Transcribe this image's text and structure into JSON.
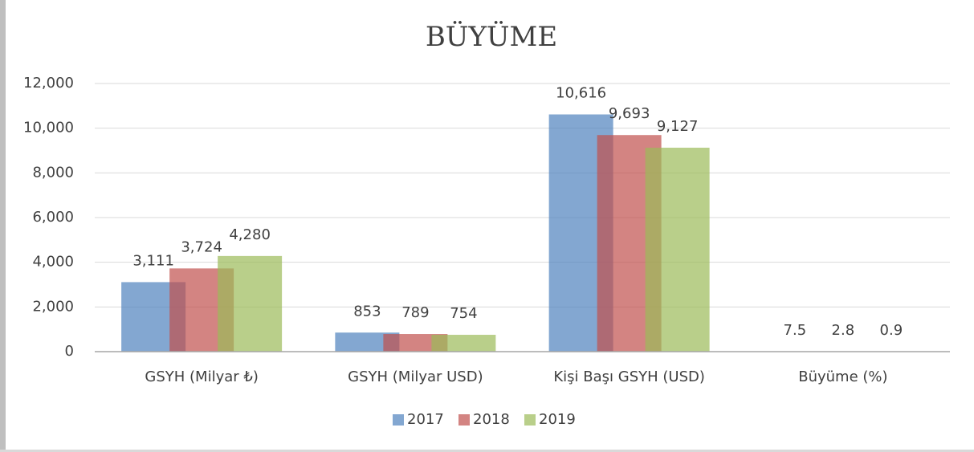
{
  "chart_data": {
    "type": "bar",
    "title": "BÜYÜME",
    "categories": [
      "GSYH (Milyar ₺)",
      "GSYH (Milyar USD)",
      "Kişi Başı GSYH (USD)",
      "Büyüme (%)"
    ],
    "series": [
      {
        "name": "2017",
        "color": "#4f81bd",
        "values": [
          3111,
          853,
          10616,
          7.5
        ],
        "value_labels": [
          "3,111",
          "853",
          "10,616",
          "7.5"
        ]
      },
      {
        "name": "2018",
        "color": "#c0504d",
        "values": [
          3724,
          789,
          9693,
          2.8
        ],
        "value_labels": [
          "3,724",
          "789",
          "9,693",
          "2.8"
        ]
      },
      {
        "name": "2019",
        "color": "#9bbb59",
        "values": [
          4280,
          754,
          9127,
          0.9
        ],
        "value_labels": [
          "4,280",
          "754",
          "9,127",
          "0.9"
        ]
      }
    ],
    "ylim": [
      0,
      12000
    ],
    "yticks": [
      0,
      {
        "value": 2000,
        "label": "2,000"
      },
      {
        "value": 4000,
        "label": "4,000"
      },
      {
        "value": 6000,
        "label": "6,000"
      },
      {
        "value": 8000,
        "label": "8,000"
      },
      {
        "value": 10000,
        "label": "10,000"
      },
      {
        "value": 12000,
        "label": "12,000"
      }
    ],
    "grid": true,
    "legend": "bottom"
  }
}
